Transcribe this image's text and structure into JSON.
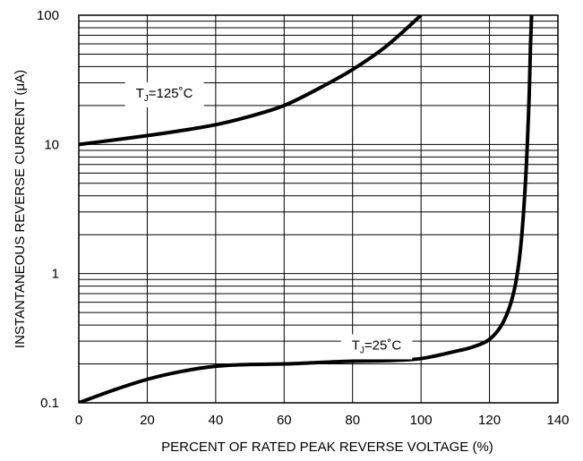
{
  "chart_data": {
    "type": "line",
    "xlabel": "PERCENT OF RATED PEAK REVERSE VOLTAGE (%)",
    "ylabel": "INSTANTANEOUS REVERSE CURRENT (μA)",
    "xlim": [
      0,
      140
    ],
    "ylim": [
      0.1,
      100
    ],
    "yscale": "log",
    "grid": true,
    "x_ticks": [
      0,
      20,
      40,
      60,
      80,
      100,
      120,
      140
    ],
    "x_tick_labels": [
      "0",
      "20",
      "40",
      "60",
      "80",
      "100",
      "120",
      "140"
    ],
    "y_ticks": [
      0.1,
      1,
      10,
      100
    ],
    "y_tick_labels": [
      "0.1",
      "1",
      "10",
      "100"
    ],
    "series": [
      {
        "label_main": "T",
        "label_sub": "J",
        "label_rest": "=125˚C",
        "x": [
          0,
          10,
          20,
          30,
          40,
          50,
          60,
          70,
          80,
          90,
          100
        ],
        "y": [
          10,
          10.8,
          11.7,
          12.8,
          14.2,
          16.5,
          20,
          27,
          38,
          58,
          100
        ]
      },
      {
        "label_main": "T",
        "label_sub": "J",
        "label_rest": "=25˚C",
        "x": [
          0,
          10,
          20,
          30,
          40,
          50,
          60,
          70,
          80,
          90,
          100,
          110,
          115,
          120,
          124,
          127,
          129,
          130.5,
          131.5,
          132,
          132.3
        ],
        "y": [
          0.1,
          0.125,
          0.152,
          0.175,
          0.192,
          0.198,
          0.2,
          0.205,
          0.21,
          0.212,
          0.22,
          0.25,
          0.27,
          0.31,
          0.42,
          0.7,
          1.5,
          5,
          20,
          60,
          100
        ]
      }
    ]
  }
}
